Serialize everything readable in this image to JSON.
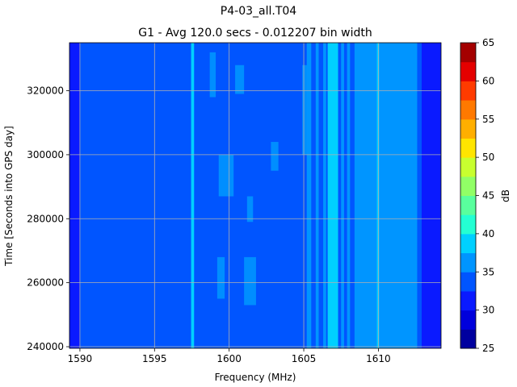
{
  "chart_data": {
    "type": "heatmap",
    "title": "P4-03_all.T04",
    "subtitle": "G1 - Avg 120.0 secs - 0.012207 bin width",
    "xlabel": "Frequency (MHz)",
    "ylabel": "Time [Seconds into GPS day]",
    "xlim": [
      1589.3,
      1614.2
    ],
    "ylim": [
      239500,
      335000
    ],
    "x_ticks": [
      1590,
      1595,
      1600,
      1605,
      1610
    ],
    "y_ticks": [
      240000,
      260000,
      280000,
      300000,
      320000
    ],
    "grid": true,
    "colorbar": {
      "label": "dB",
      "min": 25,
      "max": 65,
      "ticks": [
        25,
        30,
        35,
        40,
        45,
        50,
        55,
        60,
        65
      ],
      "levels": [
        25,
        27.5,
        30,
        32.5,
        35,
        37.5,
        40,
        42.5,
        45,
        47.5,
        50,
        52.5,
        55,
        57.5,
        60,
        62.5,
        65
      ],
      "colors": [
        "#00009f",
        "#0000dc",
        "#0a1aff",
        "#0055ff",
        "#0095ff",
        "#00d0ff",
        "#24ffd3",
        "#59ff9d",
        "#91ff66",
        "#c8ff2f",
        "#ffe500",
        "#ffaf00",
        "#ff7900",
        "#ff3b00",
        "#e40000",
        "#a40000"
      ]
    },
    "background_level_db": 33,
    "bands": [
      {
        "x": [
          1589.3,
          1590.0
        ],
        "db": 31
      },
      {
        "x": [
          1597.45,
          1597.65
        ],
        "db": 38
      },
      {
        "x": [
          1605.2,
          1605.5
        ],
        "db": 36
      },
      {
        "x": [
          1605.8,
          1606.0
        ],
        "db": 36
      },
      {
        "x": [
          1606.3,
          1606.5
        ],
        "db": 37
      },
      {
        "x": [
          1606.6,
          1607.3
        ],
        "db": 38
      },
      {
        "x": [
          1607.5,
          1607.7
        ],
        "db": 37
      },
      {
        "x": [
          1607.9,
          1608.1
        ],
        "db": 36
      },
      {
        "x": [
          1608.4,
          1612.6
        ],
        "db": 35
      },
      {
        "x": [
          1609.9,
          1610.05
        ],
        "db": 38
      },
      {
        "x": [
          1612.9,
          1614.2
        ],
        "db": 31
      }
    ],
    "patches": [
      {
        "x": [
          1599.3,
          1600.3
        ],
        "y": [
          287000,
          300000
        ],
        "db": 36
      },
      {
        "x": [
          1599.2,
          1599.7
        ],
        "y": [
          255000,
          268000
        ],
        "db": 35.5
      },
      {
        "x": [
          1600.4,
          1601.0
        ],
        "y": [
          319000,
          328000
        ],
        "db": 35.5
      },
      {
        "x": [
          1601.0,
          1601.8
        ],
        "y": [
          253000,
          268000
        ],
        "db": 35.5
      },
      {
        "x": [
          1602.8,
          1603.3
        ],
        "y": [
          295000,
          304000
        ],
        "db": 35.5
      },
      {
        "x": [
          1598.7,
          1599.1
        ],
        "y": [
          318000,
          332000
        ],
        "db": 35.5
      },
      {
        "x": [
          1601.2,
          1601.6
        ],
        "y": [
          279000,
          287000
        ],
        "db": 35.5
      },
      {
        "x": [
          1604.9,
          1605.3
        ],
        "y": [
          300000,
          328000
        ],
        "db": 35.5
      }
    ]
  }
}
